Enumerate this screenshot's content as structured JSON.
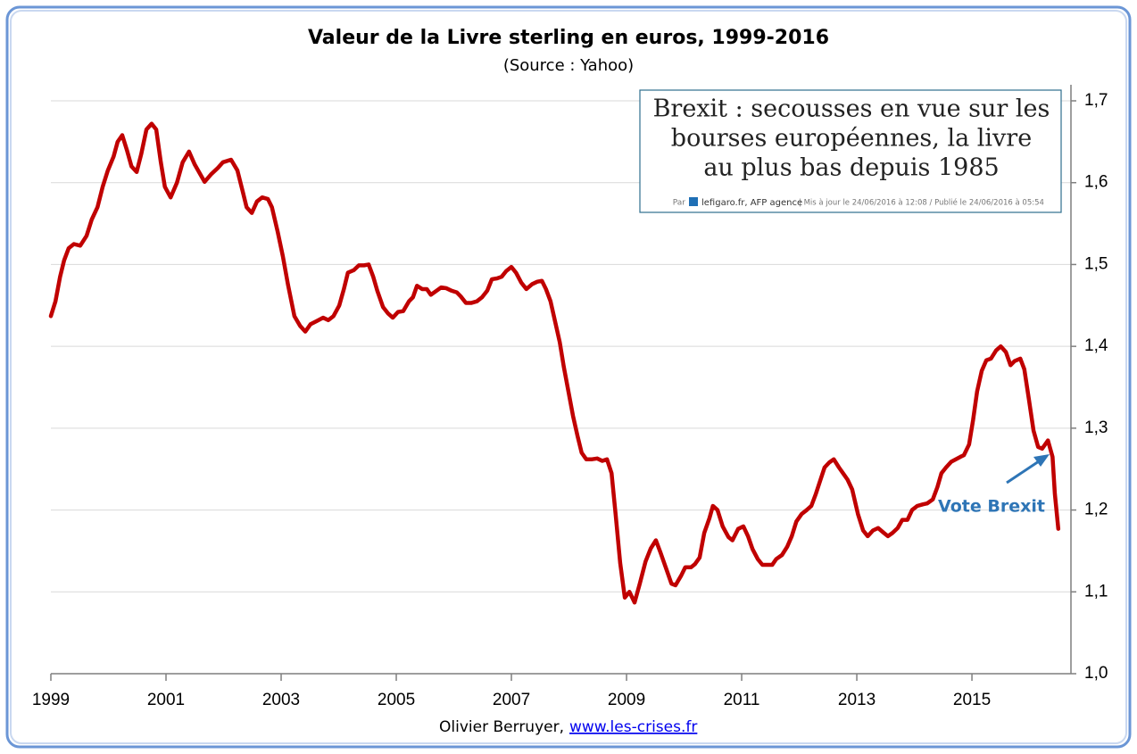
{
  "chart_data": {
    "type": "line",
    "title": "Valeur de la Livre sterling en euros, 1999-2016",
    "subtitle": "(Source : Yahoo)",
    "x": [
      1999,
      1999.08,
      1999.16,
      1999.23,
      1999.31,
      1999.4,
      1999.51,
      1999.62,
      1999.71,
      1999.81,
      1999.9,
      1999.99,
      2000.09,
      2000.16,
      2000.24,
      2000.32,
      2000.4,
      2000.49,
      2000.57,
      2000.66,
      2000.75,
      2000.83,
      2000.91,
      2000.98,
      2001.08,
      2001.19,
      2001.29,
      2001.4,
      2001.5,
      2001.67,
      2001.78,
      2001.9,
      2001.99,
      2002.13,
      2002.24,
      2002.33,
      2002.4,
      2002.49,
      2002.58,
      2002.67,
      2002.77,
      2002.84,
      2002.94,
      2003.03,
      2003.12,
      2003.23,
      2003.33,
      2003.42,
      2003.51,
      2003.62,
      2003.73,
      2003.82,
      2003.91,
      2004.01,
      2004.09,
      2004.16,
      2004.26,
      2004.35,
      2004.44,
      2004.52,
      2004.6,
      2004.67,
      2004.77,
      2004.86,
      2004.94,
      2005.03,
      2005.12,
      2005.22,
      2005.29,
      2005.36,
      2005.45,
      2005.53,
      2005.6,
      2005.7,
      2005.78,
      2005.87,
      2005.96,
      2006.05,
      2006.12,
      2006.21,
      2006.3,
      2006.4,
      2006.49,
      2006.58,
      2006.66,
      2006.75,
      2006.83,
      2006.91,
      2007.0,
      2007.08,
      2007.17,
      2007.26,
      2007.36,
      2007.45,
      2007.53,
      2007.6,
      2007.68,
      2007.76,
      2007.84,
      2007.91,
      2007.99,
      2008.07,
      2008.15,
      2008.22,
      2008.3,
      2008.4,
      2008.49,
      2008.58,
      2008.66,
      2008.74,
      2008.81,
      2008.89,
      2008.97,
      2009.05,
      2009.14,
      2009.23,
      2009.33,
      2009.42,
      2009.51,
      2009.59,
      2009.68,
      2009.78,
      2009.85,
      2009.95,
      2010.02,
      2010.12,
      2010.19,
      2010.27,
      2010.35,
      2010.44,
      2010.5,
      2010.58,
      2010.67,
      2010.77,
      2010.84,
      2010.94,
      2011.03,
      2011.11,
      2011.19,
      2011.28,
      2011.36,
      2011.45,
      2011.53,
      2011.6,
      2011.7,
      2011.79,
      2011.87,
      2011.95,
      2012.04,
      2012.13,
      2012.21,
      2012.29,
      2012.36,
      2012.44,
      2012.52,
      2012.6,
      2012.69,
      2012.77,
      2012.84,
      2012.92,
      2013.02,
      2013.11,
      2013.19,
      2013.28,
      2013.37,
      2013.47,
      2013.54,
      2013.62,
      2013.71,
      2013.79,
      2013.88,
      2013.96,
      2014.05,
      2014.15,
      2014.22,
      2014.32,
      2014.4,
      2014.47,
      2014.55,
      2014.64,
      2014.72,
      2014.8,
      2014.86,
      2014.95,
      2015.02,
      2015.09,
      2015.17,
      2015.25,
      2015.33,
      2015.42,
      2015.5,
      2015.59,
      2015.67,
      2015.74,
      2015.84,
      2015.91,
      2015.99,
      2016.07,
      2016.15,
      2016.22,
      2016.32,
      2016.4,
      2016.44,
      2016.5
    ],
    "series": [
      {
        "color": "#c00000",
        "values": [
          1.437,
          1.455,
          1.485,
          1.505,
          1.52,
          1.525,
          1.523,
          1.535,
          1.555,
          1.57,
          1.595,
          1.615,
          1.632,
          1.65,
          1.658,
          1.64,
          1.62,
          1.613,
          1.635,
          1.665,
          1.672,
          1.665,
          1.625,
          1.595,
          1.582,
          1.6,
          1.625,
          1.638,
          1.622,
          1.601,
          1.61,
          1.618,
          1.625,
          1.628,
          1.615,
          1.59,
          1.57,
          1.563,
          1.577,
          1.582,
          1.58,
          1.57,
          1.54,
          1.51,
          1.475,
          1.437,
          1.425,
          1.418,
          1.427,
          1.431,
          1.435,
          1.432,
          1.437,
          1.45,
          1.47,
          1.49,
          1.493,
          1.499,
          1.499,
          1.5,
          1.485,
          1.468,
          1.448,
          1.44,
          1.435,
          1.442,
          1.443,
          1.455,
          1.46,
          1.474,
          1.47,
          1.47,
          1.463,
          1.468,
          1.472,
          1.471,
          1.468,
          1.466,
          1.461,
          1.453,
          1.453,
          1.455,
          1.46,
          1.468,
          1.482,
          1.483,
          1.485,
          1.492,
          1.497,
          1.49,
          1.478,
          1.47,
          1.476,
          1.479,
          1.48,
          1.47,
          1.455,
          1.43,
          1.405,
          1.375,
          1.345,
          1.315,
          1.29,
          1.27,
          1.262,
          1.262,
          1.263,
          1.26,
          1.262,
          1.245,
          1.195,
          1.135,
          1.093,
          1.1,
          1.087,
          1.11,
          1.137,
          1.153,
          1.163,
          1.148,
          1.13,
          1.11,
          1.108,
          1.12,
          1.13,
          1.13,
          1.134,
          1.142,
          1.172,
          1.19,
          1.205,
          1.2,
          1.18,
          1.167,
          1.163,
          1.177,
          1.18,
          1.168,
          1.152,
          1.14,
          1.133,
          1.133,
          1.133,
          1.14,
          1.145,
          1.155,
          1.168,
          1.186,
          1.195,
          1.2,
          1.205,
          1.22,
          1.235,
          1.252,
          1.258,
          1.262,
          1.252,
          1.244,
          1.237,
          1.225,
          1.195,
          1.175,
          1.168,
          1.175,
          1.178,
          1.172,
          1.168,
          1.172,
          1.178,
          1.188,
          1.188,
          1.2,
          1.205,
          1.207,
          1.208,
          1.213,
          1.228,
          1.245,
          1.252,
          1.259,
          1.262,
          1.265,
          1.267,
          1.28,
          1.31,
          1.345,
          1.37,
          1.383,
          1.385,
          1.395,
          1.4,
          1.393,
          1.377,
          1.382,
          1.385,
          1.372,
          1.335,
          1.297,
          1.277,
          1.275,
          1.285,
          1.265,
          1.22,
          1.177
        ]
      }
    ],
    "xlim": [
      1999,
      2016.72
    ],
    "xticks": [
      1999,
      2001,
      2003,
      2005,
      2007,
      2009,
      2011,
      2013,
      2015
    ],
    "ylim": [
      1.0,
      1.7
    ],
    "yticks": [
      {
        "value": 1.0,
        "label": "1,0"
      },
      {
        "value": 1.1,
        "label": "1,1"
      },
      {
        "value": 1.2,
        "label": "1,2"
      },
      {
        "value": 1.3,
        "label": "1,3"
      },
      {
        "value": 1.4,
        "label": "1,4"
      },
      {
        "value": 1.5,
        "label": "1,5"
      },
      {
        "value": 1.6,
        "label": "1,6"
      },
      {
        "value": 1.7,
        "label": "1,7"
      }
    ],
    "grid": true,
    "annotation": "Vote Brexit",
    "inset": {
      "headline": [
        "Brexit : secousses en vue sur les",
        "bourses européennes, la livre",
        "au plus bas depuis 1985"
      ],
      "byline": [
        "Par",
        "lefigaro.fr, AFP agence",
        "|  Mis à jour le 24/06/2016 à 12:08  /  Publié le 24/06/2016 à 05:54"
      ]
    },
    "footer": {
      "author": "Olivier Berruyer,",
      "link": "www.les-crises.fr"
    }
  }
}
